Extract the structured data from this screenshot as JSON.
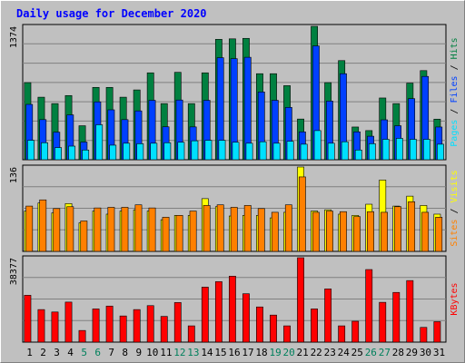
{
  "chart_data": {
    "type": "bar",
    "title": "Daily usage for December 2020",
    "colors": {
      "background": "#c0c0c0",
      "plot_bg": "#c0c0c0",
      "hits": "#008040",
      "files": "#0040ff",
      "pages": "#00e0ff",
      "visits": "#ffff00",
      "sites": "#ff8000",
      "kbytes": "#ff0000",
      "title": "#0000ff",
      "weekday_label": "#000000",
      "weekend_label": "#00805c"
    },
    "days": [
      "1",
      "2",
      "3",
      "4",
      "5",
      "6",
      "7",
      "8",
      "9",
      "10",
      "11",
      "12",
      "13",
      "14",
      "15",
      "16",
      "17",
      "18",
      "19",
      "20",
      "21",
      "22",
      "23",
      "24",
      "25",
      "26",
      "27",
      "28",
      "29",
      "30",
      "31"
    ],
    "weekend_days": [
      "5",
      "6",
      "12",
      "13",
      "19",
      "20",
      "26",
      "27"
    ],
    "panels": [
      {
        "id": "hits-files-pages",
        "max_label": "1374",
        "ymax": 1374,
        "series": [
          {
            "name": "Hits",
            "values": [
              794,
              644,
              578,
              661,
              350,
              745,
              745,
              644,
              719,
              895,
              578,
              900,
              578,
              895,
              1240,
              1245,
              1250,
              886,
              886,
              763,
              419,
              1374,
              794,
              1021,
              337,
              300,
              636,
              578,
              789,
              918,
              418
            ]
          },
          {
            "name": "Files",
            "values": [
              570,
              413,
              284,
              462,
              182,
              596,
              514,
              413,
              503,
              612,
              339,
              615,
              338,
              612,
              1051,
              1041,
              1055,
              698,
              612,
              539,
              287,
              1172,
              604,
              886,
              287,
              242,
              411,
              350,
              629,
              858,
              337
            ]
          },
          {
            "name": "Pages",
            "values": [
              200,
              175,
              125,
              140,
              100,
              360,
              150,
              170,
              165,
              170,
              175,
              180,
              195,
              200,
              200,
              180,
              170,
              185,
              170,
              190,
              160,
              300,
              170,
              185,
              100,
              165,
              210,
              220,
              210,
              210,
              160
            ]
          }
        ]
      },
      {
        "id": "visits-sites",
        "max_label": "136",
        "ymax": 136,
        "series": [
          {
            "name": "Visits",
            "values": [
              65,
              78,
              62,
              77,
              46,
              65,
              60,
              65,
              67,
              65,
              51,
              58,
              58,
              85,
              72,
              57,
              58,
              58,
              54,
              63,
              136,
              65,
              67,
              60,
              58,
              76,
              115,
              73,
              89,
              74,
              60
            ]
          },
          {
            "name": "Sites",
            "values": [
              73,
              83,
              69,
              72,
              49,
              70,
              71,
              71,
              75,
              70,
              55,
              58,
              65,
              74,
              75,
              71,
              74,
              69,
              63,
              75,
              120,
              63,
              65,
              64,
              56,
              64,
              63,
              72,
              80,
              63,
              55
            ]
          }
        ]
      },
      {
        "id": "kbytes",
        "max_label": "38377",
        "ymax": 38377,
        "series": [
          {
            "name": "KBytes",
            "values": [
              21300,
              14800,
              13700,
              18200,
              5300,
              15100,
              16400,
              11900,
              14800,
              16600,
              11700,
              18000,
              7400,
              25000,
              27500,
              30000,
              22000,
              16000,
              12300,
              7400,
              38377,
              15100,
              24200,
              7400,
              9500,
              33000,
              18100,
              22600,
              28000,
              6700,
              9300
            ]
          }
        ]
      }
    ],
    "right_labels": {
      "top": [
        {
          "text": "Pages",
          "color": "#00e0ff"
        },
        {
          "text": " / ",
          "color": "#000000"
        },
        {
          "text": "Files",
          "color": "#0040ff"
        },
        {
          "text": " / ",
          "color": "#000000"
        },
        {
          "text": "Hits",
          "color": "#008040"
        }
      ],
      "mid": [
        {
          "text": "Sites",
          "color": "#ff8000"
        },
        {
          "text": " / ",
          "color": "#000000"
        },
        {
          "text": "Visits",
          "color": "#ffff00"
        }
      ],
      "bottom": [
        {
          "text": "KBytes",
          "color": "#ff0000"
        }
      ]
    }
  }
}
